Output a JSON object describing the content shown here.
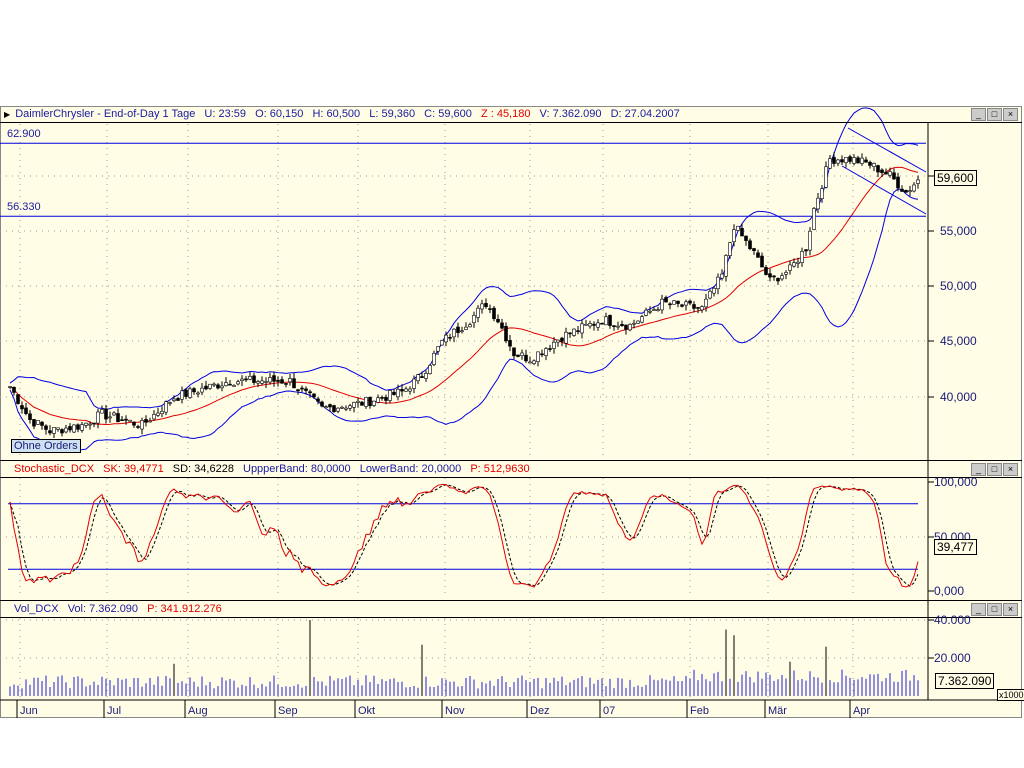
{
  "price_header": {
    "name": "DaimlerChrysler - End-of-Day 1 Tage",
    "u": "U: 23:59",
    "o": "O: 60,150",
    "h": "H: 60,500",
    "l": "L: 59,360",
    "c": "C: 59,600",
    "z": "Z : 45,180",
    "v": "V: 7.362.090",
    "d": "D: 27.04.2007"
  },
  "stoch_header": {
    "name": "Stochastic_DCX",
    "sk": "SK: 39,4771",
    "sd": "SD: 34,6228",
    "upper": "UppperBand: 80,0000",
    "lower": "LowerBand: 20,0000",
    "p": "P: 512,9630"
  },
  "vol_header": {
    "name": "Vol_DCX",
    "vol": "Vol: 7.362.090",
    "p": "P: 341.912.276"
  },
  "window_buttons": [
    "_",
    "□",
    "×"
  ],
  "ohne_orders": "Ohne Orders",
  "chart_data": [
    {
      "type": "candlestick",
      "pane": "price",
      "hlines": [
        {
          "label": "62.900",
          "value": 62.9
        },
        {
          "label": "56.330",
          "value": 56.33
        }
      ],
      "yticks": [
        "40,000",
        "45,000",
        "50,000",
        "55,000"
      ],
      "ytick_values": [
        40,
        45,
        50,
        55
      ],
      "last_value_label": "59,600",
      "last_value": 59.6,
      "close_anchors": [
        [
          0,
          41
        ],
        [
          5,
          38
        ],
        [
          10,
          37
        ],
        [
          18,
          37.5
        ],
        [
          23,
          38.5
        ],
        [
          33,
          37.5
        ],
        [
          41,
          40
        ],
        [
          55,
          41.5
        ],
        [
          70,
          41.5
        ],
        [
          75,
          40
        ],
        [
          78,
          39
        ],
        [
          88,
          39.5
        ],
        [
          98,
          40.5
        ],
        [
          103,
          42
        ],
        [
          108,
          45
        ],
        [
          115,
          47
        ],
        [
          119,
          48.5
        ],
        [
          122,
          47
        ],
        [
          126,
          44
        ],
        [
          130,
          43.5
        ],
        [
          138,
          45.5
        ],
        [
          148,
          47
        ],
        [
          155,
          46.5
        ],
        [
          163,
          48.5
        ],
        [
          173,
          48
        ],
        [
          178,
          51
        ],
        [
          181,
          55.5
        ],
        [
          186,
          53
        ],
        [
          190,
          50.5
        ],
        [
          195,
          51.5
        ],
        [
          199,
          53.5
        ],
        [
          201,
          57
        ],
        [
          205,
          61.5
        ],
        [
          210,
          61.5
        ],
        [
          215,
          61
        ],
        [
          220,
          60
        ],
        [
          224,
          58.5
        ],
        [
          227,
          59.6
        ]
      ],
      "overlays": [
        "moving average (red)",
        "bollinger bands (blue)",
        "trend channel (blue)"
      ]
    },
    {
      "type": "line",
      "pane": "stochastic",
      "series": [
        {
          "name": "SK"
        },
        {
          "name": "SD"
        }
      ],
      "bands": [
        80,
        20
      ],
      "yticks": [
        "100,000",
        "50,000",
        "0,000"
      ],
      "ytick_values": [
        100,
        50,
        0
      ],
      "last_value_label": "39,477"
    },
    {
      "type": "bar",
      "pane": "volume",
      "yticks": [
        "40.000",
        "20.000"
      ],
      "ytick_values": [
        40000,
        20000
      ],
      "last_value_label": "7.362.090",
      "unit": "x1000"
    }
  ],
  "x_axis": {
    "labels": [
      "Jun",
      "Jul",
      "Aug",
      "Sep",
      "Okt",
      "Nov",
      "Dez",
      "07",
      "Feb",
      "Mär",
      "Apr"
    ]
  },
  "colors": {
    "background": "#fffde6",
    "candle": "#000000",
    "ma": "#e00000",
    "bands": "#0000e0",
    "header_red": "#e00000",
    "header_blue": "#1a1aa0"
  }
}
